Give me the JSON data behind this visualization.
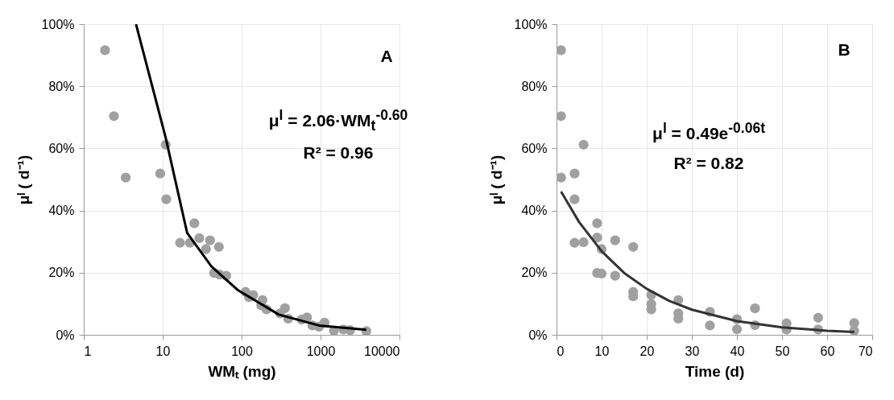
{
  "chart_data": [
    {
      "type": "scatter",
      "xlabel": "WMₜ (mg)",
      "ylabel": "μˡ ( d⁻¹)",
      "log": "x",
      "grid": true,
      "xlim": [
        1,
        10000
      ],
      "xticks": [
        1,
        10,
        100,
        1000,
        10000
      ],
      "ylim": [
        0,
        100
      ],
      "yticks": [
        {
          "value": 0,
          "label": "0%"
        },
        {
          "value": 20,
          "label": "20%"
        },
        {
          "value": 40,
          "label": "40%"
        },
        {
          "value": 60,
          "label": "60%"
        },
        {
          "value": 80,
          "label": "80%"
        },
        {
          "value": 100,
          "label": "100%"
        }
      ],
      "annotations": [
        "A",
        "μ$^{l}$ = 2.06·WM$_{t}$$^{-0.60}$",
        "R² = 0.96"
      ],
      "series": [
        {
          "color": "#a0a0a0",
          "marker": "circle",
          "x": [
            1.86,
            2.41,
            3.4,
            9.3,
            10.9,
            11.1,
            25.2,
            16.6,
            22.1,
            29.1,
            39.8,
            35.4,
            51.5,
            44.8,
            52.5,
            63.8,
            112,
            140,
            124,
            184,
            177,
            207,
            354,
            307,
            389,
            673,
            575,
            788,
            955,
            1122,
            1479,
            1950,
            2371,
            3800
          ],
          "values": [
            91.6,
            70.4,
            50.6,
            51.9,
            61.2,
            43.6,
            35.9,
            29.6,
            29.6,
            31.1,
            30.4,
            27.6,
            28.3,
            19.9,
            19.4,
            19.0,
            13.8,
            12.8,
            12.1,
            11.2,
            9.5,
            8.2,
            8.6,
            6.9,
            5.2,
            5.6,
            4.9,
            3.0,
            2.6,
            3.9,
            1.3,
            1.7,
            1.5,
            1.2
          ]
        },
        {
          "type": "line",
          "marker": "none",
          "color": "#000000",
          "x": [
            4.59,
            10.9,
            20.4,
            41.5,
            90.6,
            296,
            955,
            3800
          ],
          "values": [
            100,
            63.5,
            32.8,
            22.0,
            14.3,
            6.5,
            3.0,
            1.6
          ]
        }
      ]
    },
    {
      "type": "scatter",
      "xlabel": "Time (d)",
      "ylabel": "μˡ ( d⁻¹)",
      "grid": true,
      "xlim": [
        0,
        70
      ],
      "xticks": [
        0,
        10,
        20,
        30,
        40,
        50,
        60,
        70
      ],
      "ylim": [
        0,
        100
      ],
      "yticks": [
        {
          "value": 0,
          "label": "0%"
        },
        {
          "value": 20,
          "label": "20%"
        },
        {
          "value": 40,
          "label": "40%"
        },
        {
          "value": 60,
          "label": "60%"
        },
        {
          "value": 80,
          "label": "80%"
        },
        {
          "value": 100,
          "label": "100%"
        }
      ],
      "annotations": [
        "B",
        "μ$^{l}$  = 0.49e$^{-0.06t}$",
        "R² = 0.82"
      ],
      "series": [
        {
          "color": "#a0a0a0",
          "marker": "circle",
          "x": [
            1,
            1,
            1,
            4,
            4,
            6,
            4,
            6,
            9,
            9,
            10,
            9,
            10,
            13,
            13,
            17,
            17,
            17,
            21,
            21,
            21,
            27,
            27,
            27,
            34,
            34,
            40,
            40,
            44,
            44,
            51,
            51,
            58,
            58,
            66,
            66
          ],
          "values": [
            91.6,
            70.4,
            50.6,
            51.9,
            43.6,
            61.2,
            29.6,
            29.8,
            35.9,
            31.3,
            27.6,
            19.9,
            19.7,
            30.4,
            19.0,
            28.3,
            13.8,
            12.4,
            12.8,
            9.9,
            8.2,
            11.2,
            6.9,
            5.2,
            7.4,
            3.0,
            5.0,
            1.8,
            8.5,
            3.1,
            3.7,
            1.7,
            5.5,
            1.7,
            3.8,
            1.3
          ]
        },
        {
          "type": "line",
          "marker": "none",
          "color": "#333333",
          "x": [
            1,
            5,
            10,
            15,
            20,
            25,
            30,
            40,
            50,
            60,
            66
          ],
          "values": [
            46.1,
            36.3,
            26.9,
            19.9,
            14.8,
            10.9,
            8.1,
            4.4,
            2.4,
            1.3,
            0.9
          ]
        }
      ]
    }
  ]
}
